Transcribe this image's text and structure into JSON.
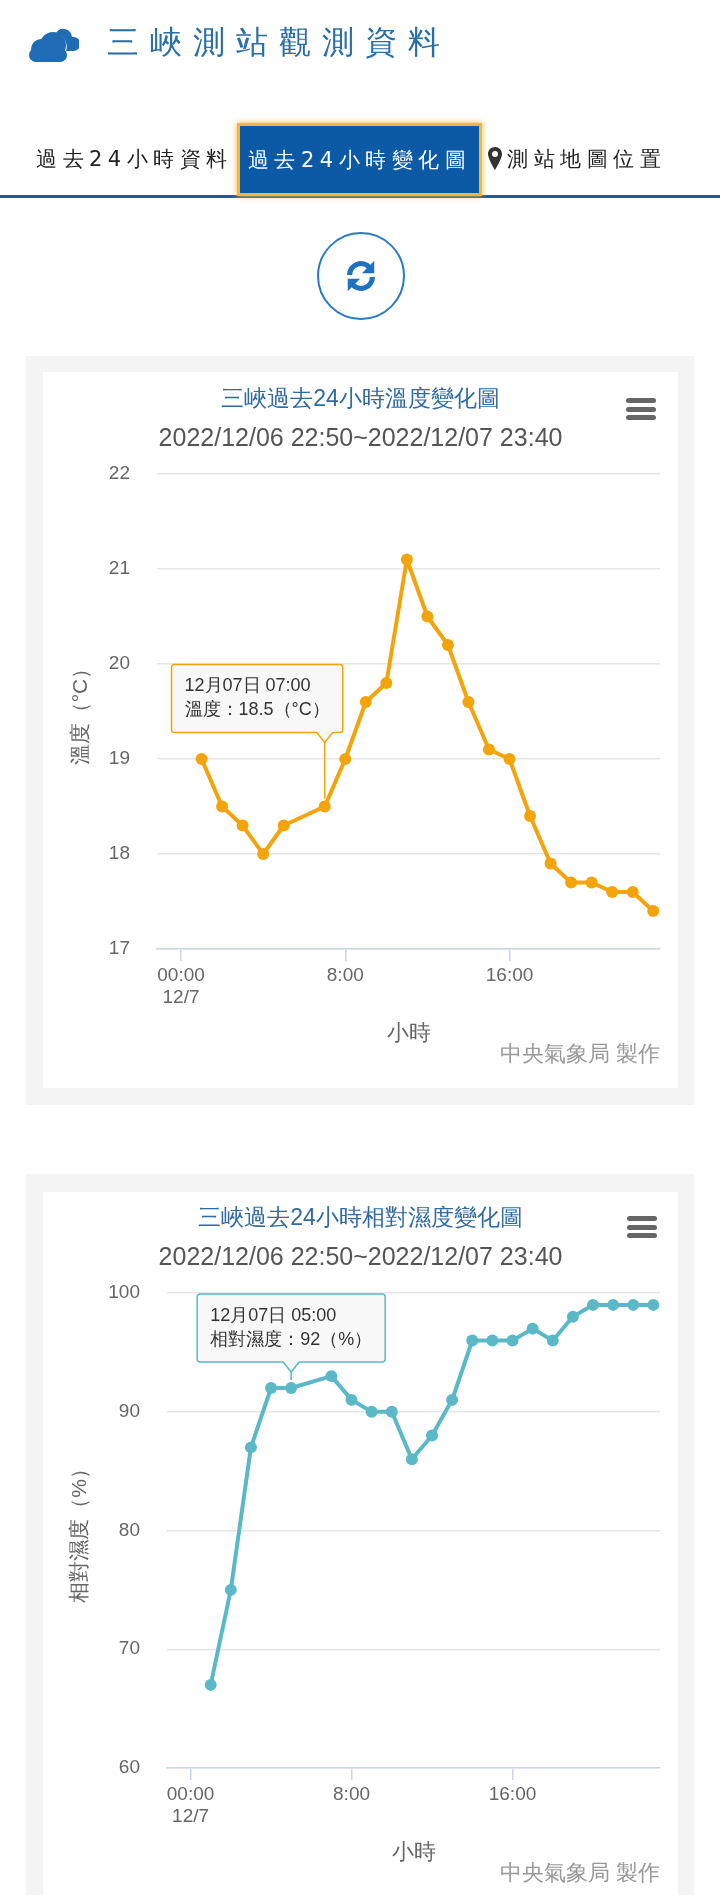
{
  "chart_data": [
    {
      "type": "other",
      "title": "三峽測站觀測資料",
      "annotations": [
        "過去24小時資料",
        "過去24小時變化圖",
        "測站地圖位置"
      ]
    },
    {
      "type": "line",
      "title": "三峽過去24小時溫度變化圖",
      "subtitle": "2022/12/06 22:50~2022/12/07 23:40",
      "xlabel": "小時",
      "ylabel": "溫度（°C）",
      "x": [
        1,
        2,
        3,
        4,
        5,
        7,
        8,
        9,
        10,
        11,
        12,
        13,
        14,
        15,
        16,
        17,
        18,
        19,
        20,
        21,
        22,
        23
      ],
      "series": [
        {
          "color": "#f4a40b",
          "values": [
            19.0,
            18.5,
            18.3,
            18.0,
            18.3,
            18.5,
            19.0,
            19.6,
            19.8,
            21.1,
            20.5,
            20.2,
            19.6,
            19.1,
            19.0,
            18.4,
            17.9,
            17.7,
            17.7,
            17.6,
            17.6,
            17.4
          ]
        }
      ],
      "xlim": [
        -1.17,
        23.33
      ],
      "xticks": [
        {
          "value": 0,
          "label": "00:00\n12/7"
        },
        {
          "value": 8,
          "label": "8:00"
        },
        {
          "value": 16,
          "label": "16:00"
        }
      ],
      "ylim": [
        17,
        22
      ],
      "yticks": [
        17,
        18,
        19,
        20,
        21,
        22
      ],
      "grid": "y",
      "marker": "circle",
      "line_style": "solid",
      "annotations": [
        {
          "text": "12月07日 07:00\n溫度：18.5（°C）",
          "x": 7,
          "y": 18.5
        },
        "中央氣象局 製作"
      ]
    },
    {
      "type": "line",
      "title": "三峽過去24小時相對濕度變化圖",
      "subtitle": "2022/12/06 22:50~2022/12/07 23:40",
      "xlabel": "小時",
      "ylabel": "相對濕度（%）",
      "x": [
        1,
        2,
        3,
        4,
        5,
        7,
        8,
        9,
        10,
        11,
        12,
        13,
        14,
        15,
        16,
        17,
        18,
        19,
        20,
        21,
        22,
        23
      ],
      "series": [
        {
          "color": "#5bb9c7",
          "values": [
            67,
            75,
            87,
            92,
            92,
            93,
            91,
            90,
            90,
            86,
            88,
            91,
            96,
            96,
            96,
            97,
            96,
            98,
            99,
            99,
            99,
            99
          ]
        }
      ],
      "xlim": [
        -1.17,
        23.33
      ],
      "xticks": [
        {
          "value": 0,
          "label": "00:00\n12/7"
        },
        {
          "value": 8,
          "label": "8:00"
        },
        {
          "value": 16,
          "label": "16:00"
        }
      ],
      "ylim": [
        60,
        100
      ],
      "yticks": [
        60,
        70,
        80,
        90,
        100
      ],
      "grid": "y",
      "marker": "circle",
      "line_style": "solid",
      "annotations": [
        {
          "text": "12月07日 05:00\n相對濕度：92（%）",
          "x": 5,
          "y": 92
        },
        "中央氣象局 製作"
      ]
    }
  ]
}
